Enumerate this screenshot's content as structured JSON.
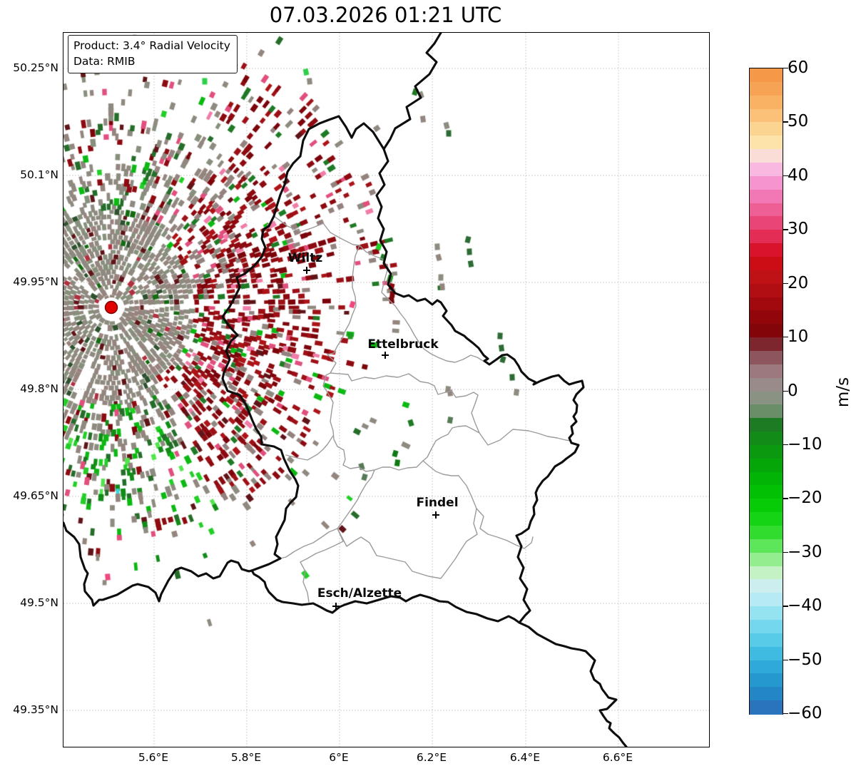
{
  "title": "07.03.2026 01:21 UTC",
  "info_box": {
    "line1": "Product: 3.4° Radial Velocity",
    "line2": "Data: RMIB"
  },
  "map": {
    "lat_tick_labels": [
      "50.25°N",
      "50.1°N",
      "49.95°N",
      "49.8°N",
      "49.65°N",
      "49.5°N",
      "49.35°N"
    ],
    "lon_tick_labels": [
      "5.6°E",
      "5.8°E",
      "6°E",
      "6.2°E",
      "6.4°E",
      "6.6°E"
    ],
    "cities": [
      {
        "name": "Wiltz"
      },
      {
        "name": "Ettelbruck"
      },
      {
        "name": "Findel"
      },
      {
        "name": "Esch/Alzette"
      }
    ],
    "radar_site": {
      "color": "#e10000"
    }
  },
  "colorbar": {
    "unit": "m/s",
    "min": -60,
    "max": 60,
    "tick_labels": [
      "60",
      "50",
      "40",
      "30",
      "20",
      "10",
      "0",
      "−10",
      "−20",
      "−30",
      "−40",
      "−50",
      "−60"
    ],
    "stops": [
      [
        -60,
        "#2e6cb6"
      ],
      [
        -57,
        "#2380c4"
      ],
      [
        -54,
        "#2496cf"
      ],
      [
        -51,
        "#2fabda"
      ],
      [
        -48,
        "#44c0e3"
      ],
      [
        -45,
        "#64d2eb"
      ],
      [
        -42,
        "#8adff0"
      ],
      [
        -39,
        "#b4eaf4"
      ],
      [
        -36,
        "#cfeeee"
      ],
      [
        -34,
        "#c9f2c9"
      ],
      [
        -31,
        "#8fee8a"
      ],
      [
        -28,
        "#4ce348"
      ],
      [
        -25,
        "#1dd71d"
      ],
      [
        -21,
        "#04ca04"
      ],
      [
        -17,
        "#00b804"
      ],
      [
        -13,
        "#06a309"
      ],
      [
        -9,
        "#128c17"
      ],
      [
        -6,
        "#1e7a24"
      ],
      [
        -4.5,
        "#5c8a5c"
      ],
      [
        -3,
        "#769173"
      ],
      [
        -1.5,
        "#879282"
      ],
      [
        0,
        "#949088"
      ],
      [
        1.5,
        "#998a8a"
      ],
      [
        3,
        "#9d8286"
      ],
      [
        4.5,
        "#987078"
      ],
      [
        6,
        "#8f5a63"
      ],
      [
        8,
        "#7f3a45"
      ],
      [
        10,
        "#7b0408"
      ],
      [
        12.5,
        "#8a0309"
      ],
      [
        15,
        "#9a060c"
      ],
      [
        17.5,
        "#a90b10"
      ],
      [
        20,
        "#b61116"
      ],
      [
        22.5,
        "#c51318"
      ],
      [
        25,
        "#d40613"
      ],
      [
        27.5,
        "#e01f44"
      ],
      [
        30,
        "#e63a66"
      ],
      [
        32.5,
        "#eb5287"
      ],
      [
        35,
        "#f06ba5"
      ],
      [
        37.5,
        "#f484c4"
      ],
      [
        40,
        "#f7a3d9"
      ],
      [
        42.5,
        "#f8cde4"
      ],
      [
        44.5,
        "#fbe6cd"
      ],
      [
        46.5,
        "#fde3a5"
      ],
      [
        49,
        "#fcd28f"
      ],
      [
        52,
        "#fabb70"
      ],
      [
        55,
        "#f8a95c"
      ],
      [
        57.5,
        "#f69c4e"
      ],
      [
        60,
        "#f4933f"
      ]
    ]
  },
  "chart_data": {
    "type": "heatmap",
    "title": "07.03.2026 01:21 UTC",
    "product": "3.4° Radial Velocity",
    "data_source": "RMIB",
    "unit": "m/s",
    "value_range": [
      -60,
      60
    ],
    "x_ticks": [
      "5.6°E",
      "5.8°E",
      "6°E",
      "6.2°E",
      "6.4°E",
      "6.6°E"
    ],
    "y_ticks": [
      "50.25°N",
      "50.1°N",
      "49.95°N",
      "49.8°N",
      "49.65°N",
      "49.5°N",
      "49.35°N"
    ],
    "city_annotations": [
      "Wiltz",
      "Ettelbruck",
      "Findel",
      "Esch/Alzette"
    ],
    "legend_position": "right"
  }
}
